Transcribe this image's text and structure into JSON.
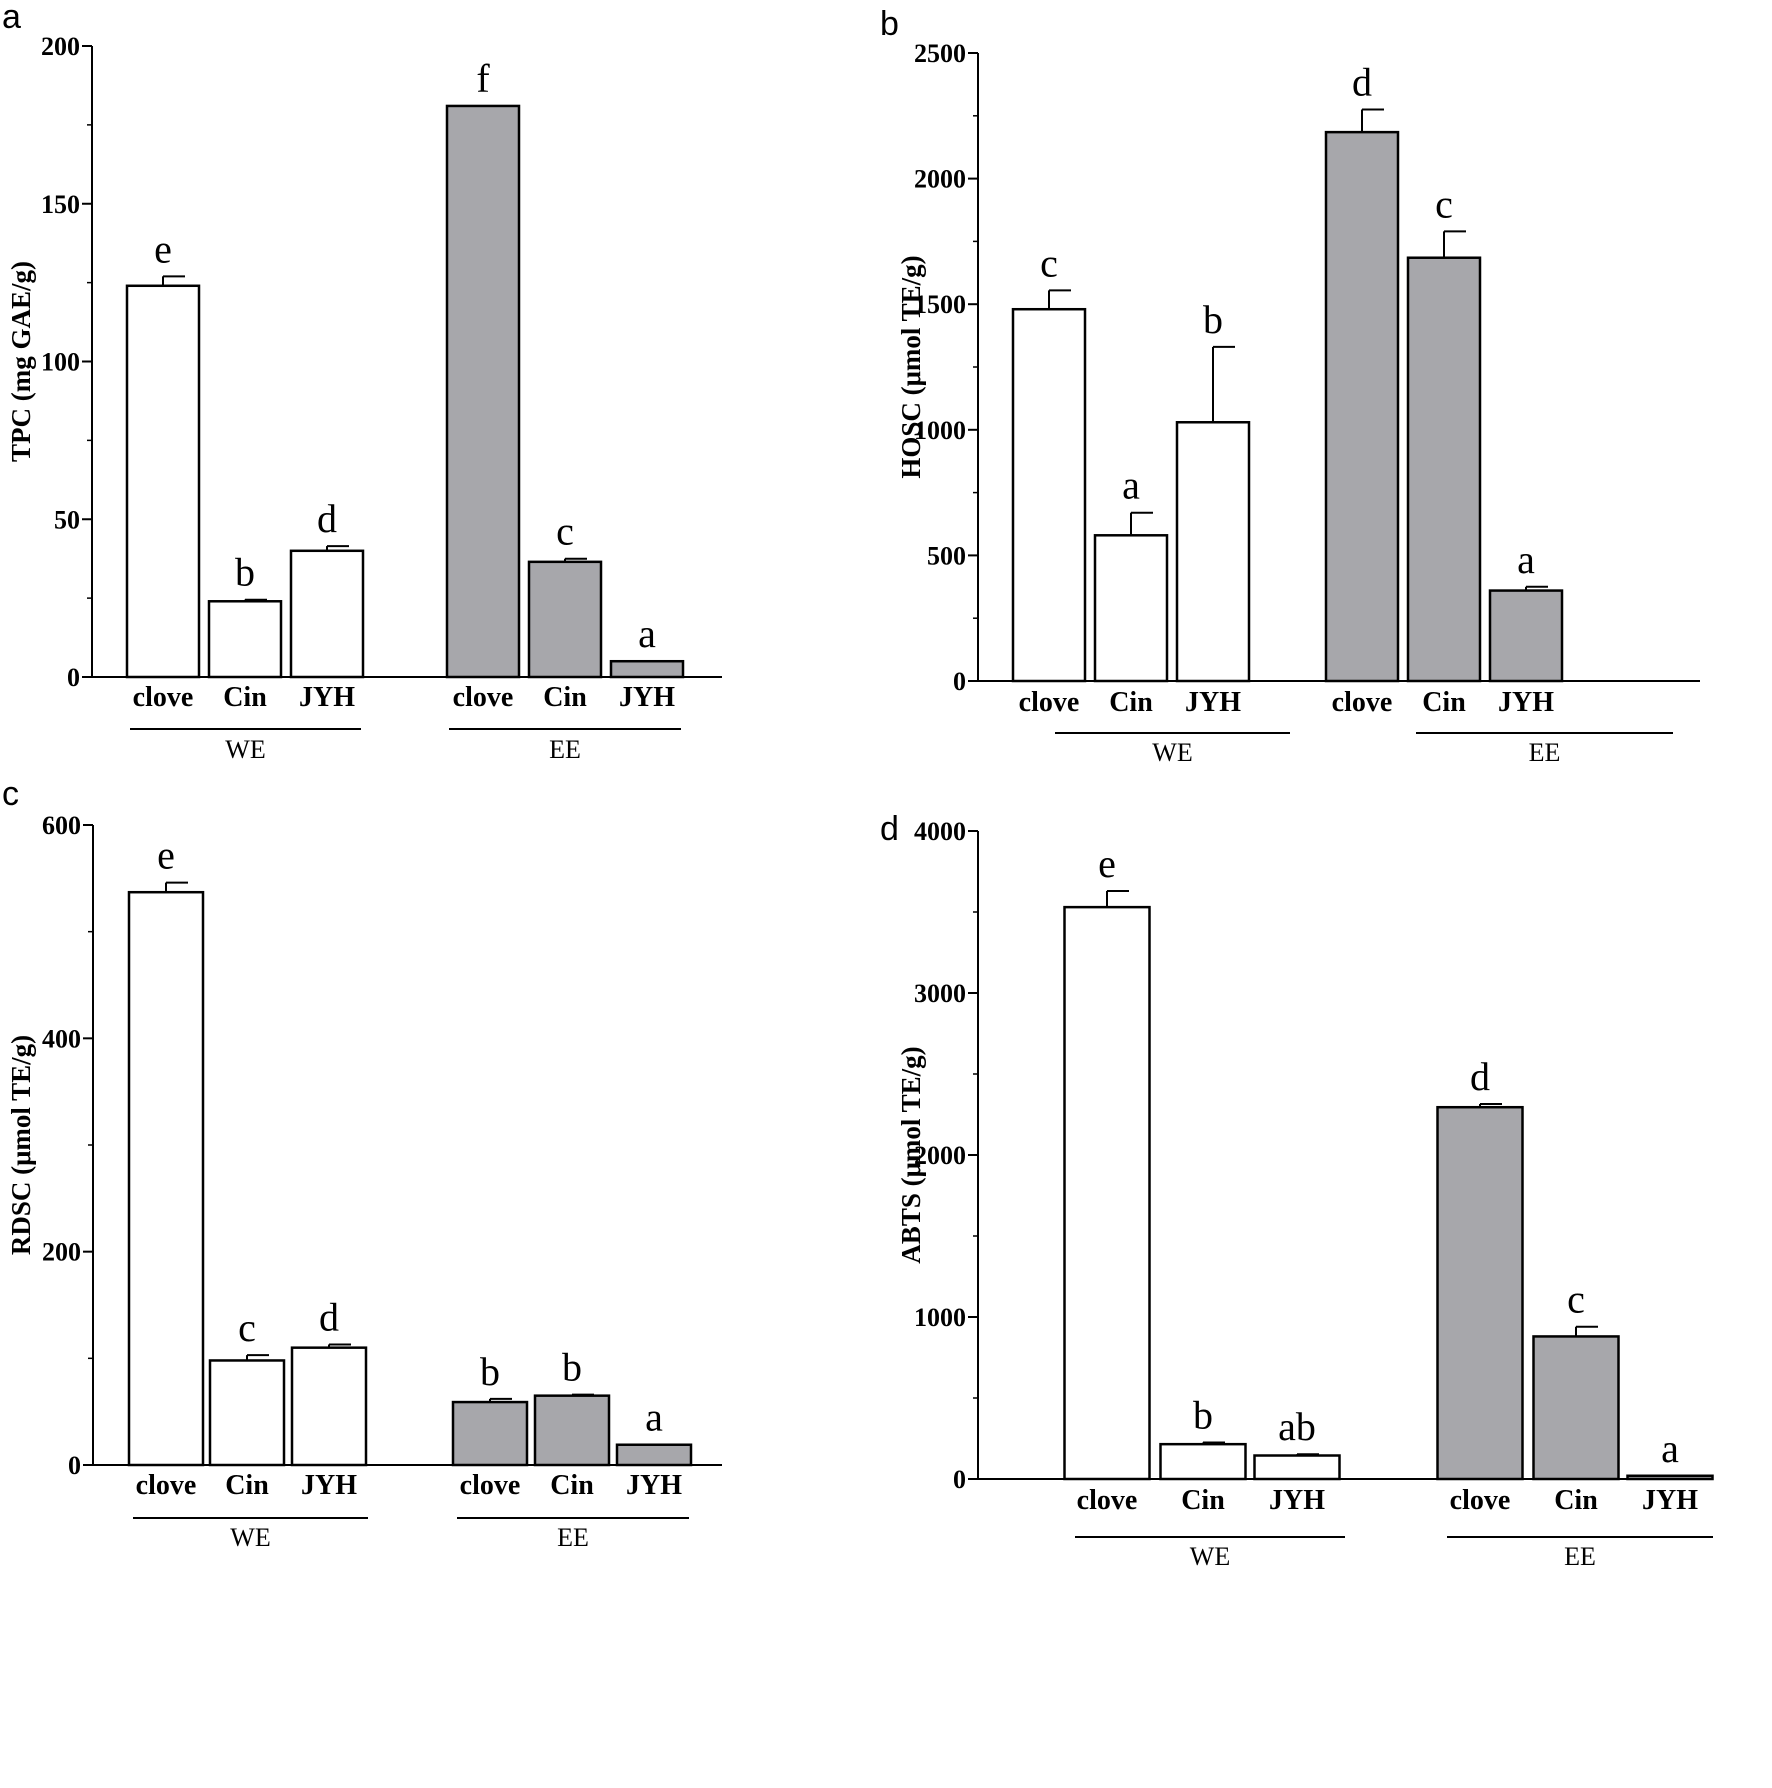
{
  "chart_data": [
    {
      "panel": "a",
      "type": "bar",
      "ylabel": "TPC (mg GAE/g)",
      "ylim": [
        0,
        200
      ],
      "yticks": [
        0,
        50,
        100,
        150,
        200
      ],
      "categories": [
        "clove",
        "Cin",
        "JYH",
        "clove",
        "Cin",
        "JYH"
      ],
      "groups": [
        {
          "name": "WE",
          "color": "#ffffff",
          "values": [
            124,
            24,
            40
          ],
          "errors": [
            3,
            0.5,
            1.5
          ],
          "letters": [
            "e",
            "b",
            "d"
          ]
        },
        {
          "name": "EE",
          "color": "#a7a7ab",
          "values": [
            181,
            36.5,
            5
          ],
          "errors": [
            0,
            1,
            0
          ],
          "letters": [
            "f",
            "c",
            "a"
          ]
        }
      ]
    },
    {
      "panel": "b",
      "type": "bar",
      "ylabel": "HOSC (μmol TE/g)",
      "ylim": [
        0,
        2500
      ],
      "yticks": [
        0,
        500,
        1000,
        1500,
        2000,
        2500
      ],
      "categories": [
        "clove",
        "Cin",
        "JYH",
        "clove",
        "Cin",
        "JYH"
      ],
      "groups": [
        {
          "name": "WE",
          "color": "#ffffff",
          "values": [
            1480,
            580,
            1030
          ],
          "errors": [
            75,
            90,
            300
          ],
          "letters": [
            "c",
            "a",
            "b"
          ]
        },
        {
          "name": "EE",
          "color": "#a7a7ab",
          "values": [
            2185,
            1685,
            360
          ],
          "errors": [
            90,
            105,
            15
          ],
          "letters": [
            "d",
            "c",
            "a"
          ]
        }
      ]
    },
    {
      "panel": "c",
      "type": "bar",
      "ylabel": "RDSC (μmol TE/g)",
      "ylim": [
        0,
        600
      ],
      "yticks": [
        0,
        200,
        400,
        600
      ],
      "categories": [
        "clove",
        "Cin",
        "JYH",
        "clove",
        "Cin",
        "JYH"
      ],
      "groups": [
        {
          "name": "WE",
          "color": "#ffffff",
          "values": [
            537,
            98,
            110
          ],
          "errors": [
            9,
            5,
            3
          ],
          "letters": [
            "e",
            "c",
            "d"
          ]
        },
        {
          "name": "EE",
          "color": "#a7a7ab",
          "values": [
            59,
            65,
            19
          ],
          "errors": [
            3,
            1,
            0
          ],
          "letters": [
            "b",
            "b",
            "a"
          ]
        }
      ]
    },
    {
      "panel": "d",
      "type": "bar",
      "ylabel": "ABTS (μmol TE/g)",
      "ylim": [
        0,
        4000
      ],
      "yticks": [
        0,
        1000,
        2000,
        3000,
        4000
      ],
      "categories": [
        "clove",
        "Cin",
        "JYH",
        "clove",
        "Cin",
        "JYH"
      ],
      "groups": [
        {
          "name": "WE",
          "color": "#ffffff",
          "values": [
            3530,
            215,
            145
          ],
          "errors": [
            100,
            10,
            8
          ],
          "letters": [
            "e",
            "b",
            "ab"
          ]
        },
        {
          "name": "EE",
          "color": "#a7a7ab",
          "values": [
            2295,
            880,
            20
          ],
          "errors": [
            20,
            60,
            0
          ],
          "letters": [
            "d",
            "c",
            "a"
          ]
        }
      ]
    }
  ]
}
